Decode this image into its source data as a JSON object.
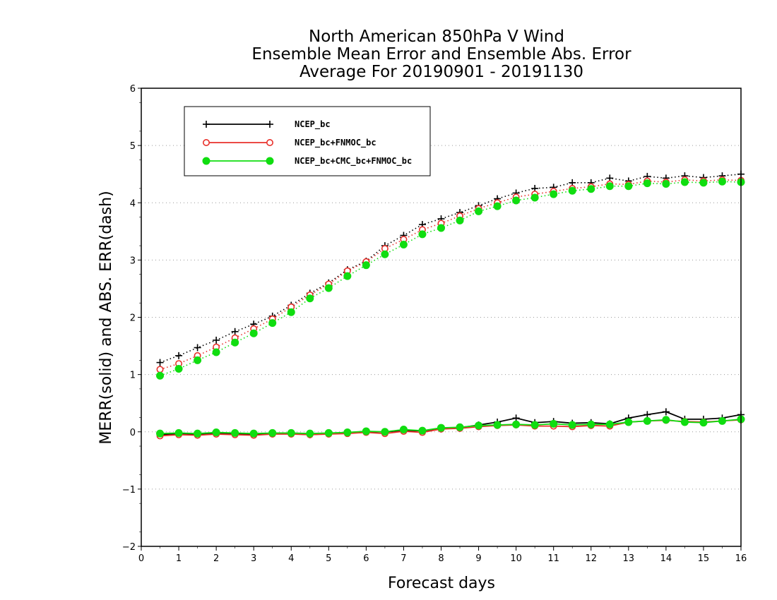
{
  "chart_data": {
    "type": "line",
    "title": "North American 850hPa V Wind",
    "subtitle": "Ensemble Mean Error and Ensemble Abs. Error",
    "subtitle2": "Average For 20190901 - 20191130",
    "xlabel": "Forecast days",
    "ylabel": "MERR(solid) and ABS. ERR(dash)",
    "xlim": [
      0,
      16
    ],
    "ylim": [
      -2,
      6
    ],
    "xticks": [
      "0",
      "1",
      "2",
      "3",
      "4",
      "5",
      "6",
      "7",
      "8",
      "9",
      "10",
      "11",
      "12",
      "13",
      "14",
      "15",
      "16"
    ],
    "yticks": [
      "−2",
      "−1",
      "0",
      "1",
      "2",
      "3",
      "4",
      "5",
      "6"
    ],
    "grid": "horizontal dotted",
    "legend_position": "top-left",
    "x": [
      0.5,
      1,
      1.5,
      2,
      2.5,
      3,
      3.5,
      4,
      4.5,
      5,
      5.5,
      6,
      6.5,
      7,
      7.5,
      8,
      8.5,
      9,
      9.5,
      10,
      10.5,
      11,
      11.5,
      12,
      12.5,
      13,
      13.5,
      14,
      14.5,
      15,
      15.5,
      16
    ],
    "series": [
      {
        "name": "NCEP_bc",
        "color": "#000000",
        "marker": "plus",
        "merr": [
          -0.05,
          -0.03,
          -0.04,
          -0.03,
          -0.03,
          -0.05,
          -0.03,
          -0.03,
          -0.05,
          -0.03,
          -0.02,
          0.0,
          0.0,
          0.02,
          0.02,
          0.05,
          0.07,
          0.12,
          0.17,
          0.24,
          0.16,
          0.18,
          0.15,
          0.16,
          0.14,
          0.24,
          0.3,
          0.35,
          0.22,
          0.22,
          0.24,
          0.3
        ],
        "abs_err": [
          1.21,
          1.33,
          1.47,
          1.6,
          1.75,
          1.88,
          2.02,
          2.21,
          2.42,
          2.6,
          2.83,
          2.98,
          3.25,
          3.43,
          3.62,
          3.72,
          3.83,
          3.95,
          4.07,
          4.17,
          4.25,
          4.27,
          4.35,
          4.35,
          4.43,
          4.38,
          4.46,
          4.43,
          4.47,
          4.44,
          4.47,
          4.5
        ]
      },
      {
        "name": "NCEP_bc+FNMOC_bc",
        "color": "#e8312b",
        "marker": "open-circle",
        "merr": [
          -0.07,
          -0.05,
          -0.06,
          -0.04,
          -0.05,
          -0.06,
          -0.04,
          -0.04,
          -0.05,
          -0.04,
          -0.03,
          -0.01,
          -0.03,
          0.01,
          -0.01,
          0.05,
          0.06,
          0.09,
          0.11,
          0.12,
          0.1,
          0.1,
          0.09,
          0.11,
          0.1,
          0.17,
          0.19,
          0.2,
          0.18,
          0.17,
          0.19,
          0.21
        ],
        "abs_err": [
          1.09,
          1.19,
          1.33,
          1.48,
          1.64,
          1.8,
          1.97,
          2.18,
          2.39,
          2.58,
          2.81,
          2.97,
          3.2,
          3.36,
          3.53,
          3.64,
          3.77,
          3.9,
          4.0,
          4.1,
          4.15,
          4.2,
          4.25,
          4.28,
          4.33,
          4.32,
          4.38,
          4.36,
          4.4,
          4.38,
          4.4,
          4.39
        ]
      },
      {
        "name": "NCEP_bc+CMC_bc+FNMOC_bc",
        "color": "#10dd10",
        "marker": "filled-circle",
        "merr": [
          -0.03,
          -0.02,
          -0.03,
          -0.01,
          -0.02,
          -0.03,
          -0.02,
          -0.02,
          -0.03,
          -0.02,
          -0.01,
          0.01,
          0.0,
          0.04,
          0.02,
          0.07,
          0.08,
          0.11,
          0.12,
          0.13,
          0.12,
          0.14,
          0.12,
          0.13,
          0.13,
          0.17,
          0.19,
          0.21,
          0.17,
          0.16,
          0.19,
          0.22
        ],
        "abs_err": [
          0.98,
          1.1,
          1.25,
          1.39,
          1.56,
          1.72,
          1.9,
          2.09,
          2.33,
          2.51,
          2.72,
          2.91,
          3.1,
          3.27,
          3.45,
          3.56,
          3.69,
          3.85,
          3.94,
          4.04,
          4.09,
          4.15,
          4.21,
          4.24,
          4.29,
          4.29,
          4.34,
          4.33,
          4.36,
          4.35,
          4.37,
          4.36
        ]
      }
    ]
  }
}
